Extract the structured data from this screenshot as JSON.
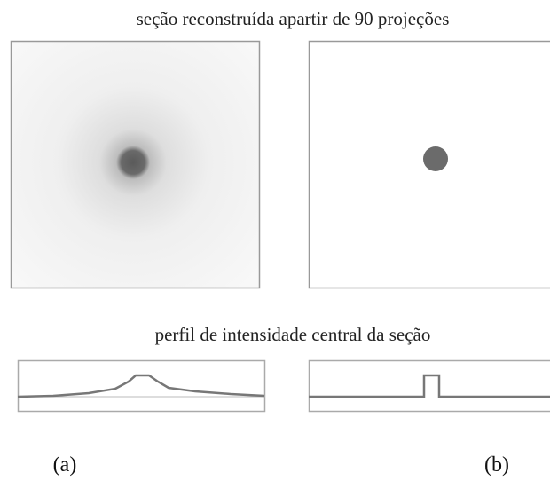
{
  "figure": {
    "title": "seção reconstruída apartir de 90 projeções",
    "profile_caption": "perfil de intensidade central da seção",
    "panels": [
      {
        "label": "(a)"
      },
      {
        "label": "(b)"
      }
    ]
  }
}
